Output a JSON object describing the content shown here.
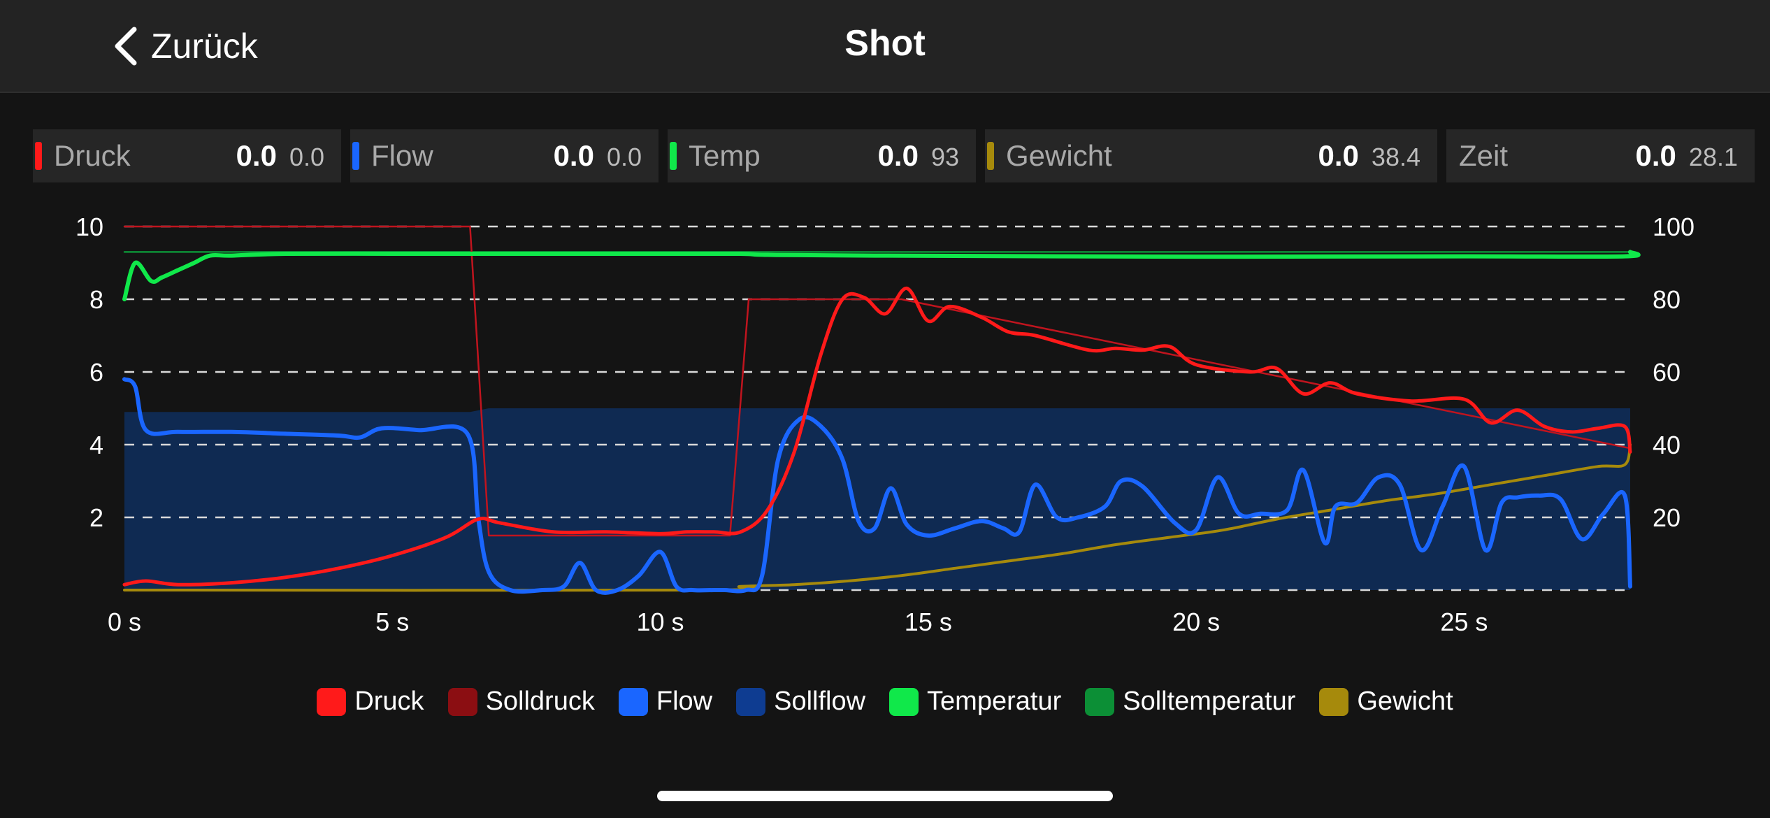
{
  "nav": {
    "back_label": "Zurück",
    "title": "Shot"
  },
  "metrics": [
    {
      "label": "Druck",
      "value": "0.0",
      "target": "0.0",
      "color": "#ff1a1a"
    },
    {
      "label": "Flow",
      "value": "0.0",
      "target": "0.0",
      "color": "#1a66ff"
    },
    {
      "label": "Temp",
      "value": "0.0",
      "target": "93",
      "color": "#10e84a"
    },
    {
      "label": "Gewicht",
      "value": "0.0",
      "target": "38.4",
      "color": "#a68a0c"
    },
    {
      "label": "Zeit",
      "value": "0.0",
      "target": "28.1",
      "color": ""
    }
  ],
  "chart_data": {
    "type": "line",
    "x_unit": "s",
    "xlim": [
      0,
      28.1
    ],
    "x_ticks": [
      0,
      5,
      10,
      15,
      20,
      25
    ],
    "x_tick_labels": [
      "0 s",
      "5 s",
      "10 s",
      "15 s",
      "20 s",
      "25 s"
    ],
    "ylim_left": [
      0,
      10
    ],
    "y_ticks_left": [
      "10",
      "8",
      "6",
      "4",
      "2"
    ],
    "ylim_right": [
      0,
      100
    ],
    "y_ticks_right": [
      "100",
      "80",
      "60",
      "40",
      "20"
    ],
    "grid": "dashed horizontal",
    "legend_position": "bottom",
    "series": [
      {
        "name": "Druck",
        "color": "#ff1a1a",
        "axis": "left",
        "x": [
          0,
          0.4,
          1,
          2,
          3,
          4,
          5,
          6,
          6.6,
          7,
          8,
          9,
          10,
          10.5,
          11,
          11.5,
          12,
          12.5,
          13,
          13.4,
          13.8,
          14.2,
          14.6,
          15,
          15.4,
          16,
          16.5,
          17,
          18,
          18.5,
          19,
          19.5,
          20,
          21,
          21.5,
          22,
          22.5,
          23,
          24,
          25,
          25.5,
          26,
          26.5,
          27,
          27.5,
          28,
          28.1
        ],
        "y": [
          0.15,
          0.25,
          0.15,
          0.2,
          0.35,
          0.6,
          0.95,
          1.45,
          1.95,
          1.85,
          1.6,
          1.6,
          1.55,
          1.6,
          1.6,
          1.6,
          2.2,
          3.8,
          6.5,
          8.0,
          8.05,
          7.6,
          8.3,
          7.4,
          7.8,
          7.5,
          7.1,
          7.0,
          6.6,
          6.65,
          6.6,
          6.7,
          6.2,
          6.0,
          6.1,
          5.4,
          5.7,
          5.4,
          5.2,
          5.25,
          4.6,
          4.95,
          4.5,
          4.35,
          4.45,
          4.5,
          3.8
        ]
      },
      {
        "name": "Solldruck",
        "color": "#c0141e",
        "axis": "left",
        "x": [
          0,
          6.45,
          6.8,
          11.3,
          11.65,
          14.5,
          28.1
        ],
        "y": [
          10,
          10,
          1.5,
          1.5,
          8,
          8,
          3.9
        ]
      },
      {
        "name": "Flow",
        "color": "#1a66ff",
        "axis": "left",
        "x": [
          0,
          0.2,
          0.4,
          1,
          2,
          3,
          4,
          4.4,
          4.8,
          5.5,
          6.4,
          6.6,
          6.8,
          7.2,
          7.8,
          8.2,
          8.5,
          8.8,
          9.2,
          9.6,
          10,
          10.3,
          10.6,
          11,
          11.2,
          11.6,
          11.9,
          12.2,
          12.6,
          13,
          13.4,
          13.7,
          14,
          14.3,
          14.6,
          15,
          15.5,
          16,
          16.4,
          16.7,
          17,
          17.4,
          17.8,
          18.3,
          18.6,
          19,
          19.6,
          20,
          20.4,
          20.8,
          21.2,
          21.7,
          22,
          22.4,
          22.6,
          23,
          23.4,
          23.8,
          24.2,
          24.6,
          25.0,
          25.4,
          25.7,
          26.0,
          26.4,
          26.8,
          27.2,
          27.6,
          28.0,
          28.1
        ],
        "y": [
          5.8,
          5.6,
          4.4,
          4.35,
          4.35,
          4.3,
          4.25,
          4.2,
          4.45,
          4.4,
          4.3,
          2.0,
          0.5,
          0,
          0,
          0.1,
          0.75,
          0,
          0,
          0.4,
          1.05,
          0.1,
          0,
          0,
          0,
          0,
          0.4,
          3.6,
          4.7,
          4.5,
          3.6,
          1.9,
          1.7,
          2.8,
          1.8,
          1.5,
          1.7,
          1.9,
          1.7,
          1.6,
          2.9,
          2.0,
          2.0,
          2.3,
          3.0,
          2.85,
          1.85,
          1.65,
          3.1,
          2.1,
          2.1,
          2.2,
          3.3,
          1.3,
          2.3,
          2.4,
          3.1,
          2.9,
          1.1,
          2.3,
          3.4,
          1.1,
          2.4,
          2.55,
          2.6,
          2.5,
          1.4,
          2.1,
          2.6,
          0.1
        ]
      },
      {
        "name": "Sollflow",
        "color": "#0e3c91",
        "axis": "left",
        "x": [
          0,
          6.45,
          6.8,
          28.1
        ],
        "y": [
          4.9,
          4.9,
          5.0,
          5.0
        ]
      },
      {
        "name": "Temperatur",
        "color": "#10e84a",
        "axis": "right",
        "x": [
          0,
          0.2,
          0.5,
          0.7,
          1,
          1.3,
          1.6,
          2,
          3,
          5,
          7,
          10,
          11.5,
          12,
          14,
          20,
          25,
          28,
          28.1
        ],
        "y": [
          80,
          90,
          85,
          86,
          88,
          90,
          92,
          92,
          92.5,
          92.5,
          92.5,
          92.5,
          92.5,
          92.2,
          92,
          91.7,
          91.8,
          91.8,
          93
        ]
      },
      {
        "name": "Solltemperatur",
        "color": "#0c8f36",
        "axis": "right",
        "x": [
          0,
          28.1
        ],
        "y": [
          93,
          93
        ]
      },
      {
        "name": "Gewicht",
        "color": "#a68a0c",
        "axis": "right",
        "x": [
          0,
          10.8,
          11.5,
          12.5,
          13.5,
          14.5,
          15.5,
          16.5,
          17.5,
          18.5,
          19.5,
          20.5,
          21.5,
          22.5,
          23.5,
          24.5,
          25.5,
          26.5,
          27.5,
          28,
          28.1
        ],
        "y": [
          0,
          0,
          1,
          1.5,
          2.5,
          4,
          6,
          8,
          10,
          12.5,
          14.5,
          16.5,
          19.5,
          22,
          24.5,
          26.5,
          29,
          31.5,
          34,
          34.5,
          40
        ]
      }
    ]
  },
  "legend": [
    {
      "label": "Druck",
      "color": "#ff1a1a"
    },
    {
      "label": "Solldruck",
      "color": "#8b0e12"
    },
    {
      "label": "Flow",
      "color": "#1a66ff"
    },
    {
      "label": "Sollflow",
      "color": "#0e3c91"
    },
    {
      "label": "Temperatur",
      "color": "#10e84a"
    },
    {
      "label": "Solltemperatur",
      "color": "#0c8f36"
    },
    {
      "label": "Gewicht",
      "color": "#a68a0c"
    }
  ]
}
